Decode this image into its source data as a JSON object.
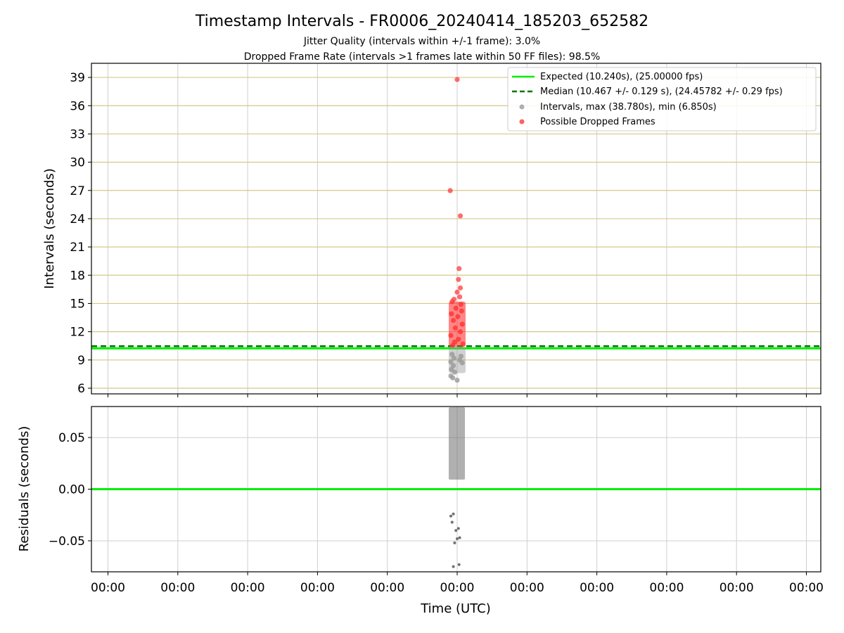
{
  "chart_data": [
    {
      "type": "scatter",
      "title": "Timestamp Intervals - FR0006_20240414_185203_652582",
      "subtitle_1": "Jitter Quality (intervals within +/-1 frame): 3.0%",
      "subtitle_2": "Dropped Frame Rate (intervals >1 frames late within 50 FF files): 98.5%",
      "xlabel": "",
      "ylabel": "Intervals (seconds)",
      "ylim": [
        5.4,
        40.5
      ],
      "yticks": [
        6,
        9,
        12,
        15,
        18,
        21,
        24,
        27,
        30,
        33,
        36,
        39
      ],
      "grid": true,
      "legend_position": "top-right",
      "legend": [
        {
          "label": "Expected (10.240s), (25.00000 fps)",
          "style": "solid-line",
          "color": "#00ee00"
        },
        {
          "label": "Median (10.467 +/- 0.129 s), (24.45782 +/- 0.29 fps)",
          "style": "dashed-line",
          "color": "#007700"
        },
        {
          "label": "Intervals, max (38.780s), min (6.850s)",
          "style": "dot",
          "color": "#9a9a9a"
        },
        {
          "label": "Possible Dropped Frames",
          "style": "dot",
          "color": "#ff3b3b"
        }
      ],
      "expected_interval": 10.24,
      "median_interval": 10.467,
      "series": [
        {
          "name": "Possible Dropped Frames",
          "color": "#ff3b3b",
          "points": [
            {
              "x": 0.0,
              "y": 38.78
            },
            {
              "x": -0.11,
              "y": 26.98
            },
            {
              "x": 0.05,
              "y": 24.3
            },
            {
              "x": 0.03,
              "y": 18.7
            },
            {
              "x": 0.02,
              "y": 17.55
            },
            {
              "x": 0.05,
              "y": 16.65
            },
            {
              "x": 0.0,
              "y": 16.2
            },
            {
              "x": 0.04,
              "y": 15.7
            },
            {
              "x": -0.05,
              "y": 15.45
            },
            {
              "x": -0.08,
              "y": 15.2
            },
            {
              "x": 0.06,
              "y": 14.9
            },
            {
              "x": -0.02,
              "y": 14.5
            },
            {
              "x": 0.07,
              "y": 14.2
            },
            {
              "x": -0.09,
              "y": 13.9
            },
            {
              "x": 0.01,
              "y": 13.6
            },
            {
              "x": -0.06,
              "y": 13.2
            },
            {
              "x": 0.08,
              "y": 12.8
            },
            {
              "x": -0.03,
              "y": 12.4
            },
            {
              "x": 0.05,
              "y": 12.0
            },
            {
              "x": -0.1,
              "y": 11.6
            },
            {
              "x": 0.02,
              "y": 11.2
            },
            {
              "x": -0.04,
              "y": 10.9
            },
            {
              "x": 0.09,
              "y": 10.7
            },
            {
              "x": -0.07,
              "y": 10.55
            }
          ]
        },
        {
          "name": "Intervals, max (38.780s), min (6.850s)",
          "color": "#9a9a9a",
          "points": [
            {
              "x": -0.08,
              "y": 9.6
            },
            {
              "x": -0.05,
              "y": 9.2
            },
            {
              "x": -0.1,
              "y": 8.8
            },
            {
              "x": -0.06,
              "y": 8.4
            },
            {
              "x": -0.09,
              "y": 8.0
            },
            {
              "x": -0.04,
              "y": 7.7
            },
            {
              "x": -0.1,
              "y": 7.3
            },
            {
              "x": -0.07,
              "y": 7.1
            },
            {
              "x": 0.0,
              "y": 6.85
            },
            {
              "x": 0.06,
              "y": 9.4
            },
            {
              "x": 0.08,
              "y": 8.7
            },
            {
              "x": 0.04,
              "y": 9.0
            }
          ]
        }
      ]
    },
    {
      "type": "scatter",
      "title": "",
      "xlabel": "Time (UTC)",
      "ylabel": "Residuals (seconds)",
      "ylim": [
        -0.08,
        0.08
      ],
      "yticks": [
        -0.05,
        0.0,
        0.05
      ],
      "ytick_labels": [
        "−0.05",
        "0.00",
        "0.05"
      ],
      "grid": true,
      "xtick_labels": [
        "00:00",
        "00:00",
        "00:00",
        "00:00",
        "00:00",
        "00:00",
        "00:00",
        "00:00",
        "00:00",
        "00:00",
        "00:00"
      ],
      "zero_line_color": "#00ee00",
      "series": [
        {
          "name": "Residuals",
          "color": "#707070",
          "points": [
            {
              "x": -0.06,
              "y": -0.075
            },
            {
              "x": 0.03,
              "y": -0.073
            },
            {
              "x": -0.04,
              "y": -0.052
            },
            {
              "x": 0.0,
              "y": -0.048
            },
            {
              "x": 0.04,
              "y": -0.047
            },
            {
              "x": -0.02,
              "y": -0.04
            },
            {
              "x": 0.02,
              "y": -0.038
            },
            {
              "x": -0.08,
              "y": -0.032
            },
            {
              "x": -0.1,
              "y": -0.026
            },
            {
              "x": -0.06,
              "y": -0.024
            }
          ]
        }
      ]
    }
  ]
}
